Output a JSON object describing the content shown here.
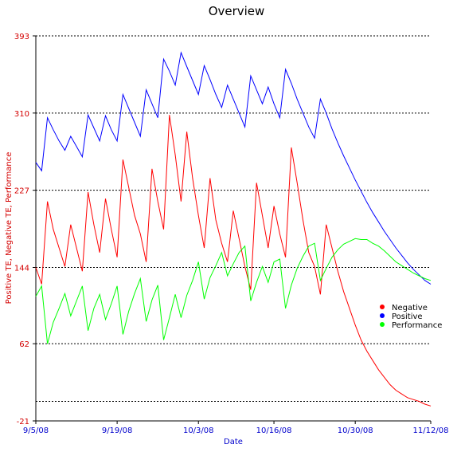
{
  "chart_data": {
    "type": "line",
    "title": "Overview",
    "xlabel": "Date",
    "ylabel": "Positive TE, Negative TE, Performance",
    "x_start": "9/5/08",
    "x_end": "11/12/08",
    "xlim": [
      "9/5/08",
      "11/12/08"
    ],
    "ylim": [
      -21,
      393
    ],
    "yticks": [
      -21,
      62,
      144,
      227,
      310,
      393
    ],
    "xticks": [
      "9/5/08",
      "9/19/08",
      "10/3/08",
      "10/16/08",
      "10/30/08",
      "11/12/08"
    ],
    "grid": "horizontal-dotted",
    "legend_position": "right",
    "series": [
      {
        "name": "Negative",
        "color": "#ff0000",
        "x": [
          "9/5/08",
          "9/6/08",
          "9/7/08",
          "9/8/08",
          "9/9/08",
          "9/10/08",
          "9/11/08",
          "9/12/08",
          "9/13/08",
          "9/14/08",
          "9/15/08",
          "9/16/08",
          "9/17/08",
          "9/18/08",
          "9/19/08",
          "9/20/08",
          "9/21/08",
          "9/22/08",
          "9/23/08",
          "9/24/08",
          "9/25/08",
          "9/26/08",
          "9/27/08",
          "9/28/08",
          "9/29/08",
          "9/30/08",
          "10/1/08",
          "10/2/08",
          "10/3/08",
          "10/4/08",
          "10/5/08",
          "10/6/08",
          "10/7/08",
          "10/8/08",
          "10/9/08",
          "10/10/08",
          "10/11/08",
          "10/12/08",
          "10/13/08",
          "10/14/08",
          "10/15/08",
          "10/16/08",
          "10/17/08",
          "10/18/08",
          "10/19/08",
          "10/20/08",
          "10/21/08",
          "10/22/08",
          "10/23/08",
          "10/24/08",
          "10/25/08",
          "10/26/08",
          "10/27/08",
          "10/28/08",
          "10/29/08",
          "10/30/08",
          "10/31/08",
          "11/1/08",
          "11/2/08",
          "11/3/08",
          "11/4/08",
          "11/5/08",
          "11/6/08",
          "11/7/08",
          "11/8/08",
          "11/9/08",
          "11/10/08",
          "11/11/08",
          "11/12/08"
        ],
        "values": [
          144,
          126,
          215,
          185,
          165,
          145,
          190,
          165,
          140,
          225,
          190,
          160,
          218,
          185,
          155,
          260,
          230,
          200,
          180,
          150,
          250,
          215,
          185,
          308,
          265,
          215,
          290,
          240,
          200,
          165,
          240,
          195,
          170,
          150,
          205,
          175,
          145,
          120,
          235,
          200,
          165,
          210,
          180,
          155,
          273,
          235,
          195,
          160,
          145,
          115,
          190,
          165,
          140,
          118,
          100,
          82,
          66,
          54,
          44,
          34,
          26,
          18,
          12,
          8,
          4,
          2,
          0,
          -3,
          -5
        ]
      },
      {
        "name": "Positive",
        "color": "#0000ff",
        "x": [
          "9/5/08",
          "9/6/08",
          "9/7/08",
          "9/8/08",
          "9/9/08",
          "9/10/08",
          "9/11/08",
          "9/12/08",
          "9/13/08",
          "9/14/08",
          "9/15/08",
          "9/16/08",
          "9/17/08",
          "9/18/08",
          "9/19/08",
          "9/20/08",
          "9/21/08",
          "9/22/08",
          "9/23/08",
          "9/24/08",
          "9/25/08",
          "9/26/08",
          "9/27/08",
          "9/28/08",
          "9/29/08",
          "9/30/08",
          "10/1/08",
          "10/2/08",
          "10/3/08",
          "10/4/08",
          "10/5/08",
          "10/6/08",
          "10/7/08",
          "10/8/08",
          "10/9/08",
          "10/10/08",
          "10/11/08",
          "10/12/08",
          "10/13/08",
          "10/14/08",
          "10/15/08",
          "10/16/08",
          "10/17/08",
          "10/18/08",
          "10/19/08",
          "10/20/08",
          "10/21/08",
          "10/22/08",
          "10/23/08",
          "10/24/08",
          "10/25/08",
          "10/26/08",
          "10/27/08",
          "10/28/08",
          "10/29/08",
          "10/30/08",
          "10/31/08",
          "11/1/08",
          "11/2/08",
          "11/3/08",
          "11/4/08",
          "11/5/08",
          "11/6/08",
          "11/7/08",
          "11/8/08",
          "11/9/08",
          "11/10/08",
          "11/11/08",
          "11/12/08"
        ],
        "values": [
          257,
          248,
          305,
          292,
          280,
          270,
          285,
          274,
          263,
          308,
          294,
          280,
          307,
          292,
          280,
          330,
          315,
          300,
          285,
          335,
          320,
          305,
          368,
          355,
          340,
          375,
          360,
          345,
          330,
          361,
          346,
          330,
          316,
          340,
          325,
          310,
          295,
          350,
          335,
          320,
          338,
          320,
          305,
          357,
          342,
          325,
          310,
          295,
          283,
          325,
          310,
          293,
          278,
          264,
          251,
          238,
          226,
          214,
          203,
          193,
          183,
          174,
          165,
          157,
          149,
          142,
          136,
          130,
          126
        ]
      },
      {
        "name": "Performance",
        "color": "#00ff00",
        "x": [
          "9/5/08",
          "9/6/08",
          "9/7/08",
          "9/8/08",
          "9/9/08",
          "9/10/08",
          "9/11/08",
          "9/12/08",
          "9/13/08",
          "9/14/08",
          "9/15/08",
          "9/16/08",
          "9/17/08",
          "9/18/08",
          "9/19/08",
          "9/20/08",
          "9/21/08",
          "9/22/08",
          "9/23/08",
          "9/24/08",
          "9/25/08",
          "9/26/08",
          "9/27/08",
          "9/28/08",
          "9/29/08",
          "9/30/08",
          "10/1/08",
          "10/2/08",
          "10/3/08",
          "10/4/08",
          "10/5/08",
          "10/6/08",
          "10/7/08",
          "10/8/08",
          "10/9/08",
          "10/10/08",
          "10/11/08",
          "10/12/08",
          "10/13/08",
          "10/14/08",
          "10/15/08",
          "10/16/08",
          "10/17/08",
          "10/18/08",
          "10/19/08",
          "10/20/08",
          "10/21/08",
          "10/22/08",
          "10/23/08",
          "10/24/08",
          "10/25/08",
          "10/26/08",
          "10/27/08",
          "10/28/08",
          "10/29/08",
          "10/30/08",
          "10/31/08",
          "11/1/08",
          "11/2/08",
          "11/3/08",
          "11/4/08",
          "11/5/08",
          "11/6/08",
          "11/7/08",
          "11/8/08",
          "11/9/08",
          "11/10/08",
          "11/11/08",
          "11/12/08"
        ],
        "values": [
          113,
          124,
          62,
          85,
          100,
          116,
          92,
          108,
          124,
          76,
          100,
          115,
          88,
          105,
          124,
          72,
          97,
          116,
          132,
          86,
          109,
          125,
          66,
          90,
          115,
          90,
          114,
          130,
          150,
          110,
          133,
          146,
          160,
          135,
          148,
          160,
          167,
          108,
          128,
          145,
          128,
          150,
          153,
          100,
          125,
          143,
          156,
          167,
          170,
          130,
          143,
          155,
          163,
          169,
          172,
          175,
          174,
          174,
          170,
          167,
          162,
          156,
          150,
          146,
          142,
          138,
          135,
          132,
          130
        ]
      }
    ]
  }
}
